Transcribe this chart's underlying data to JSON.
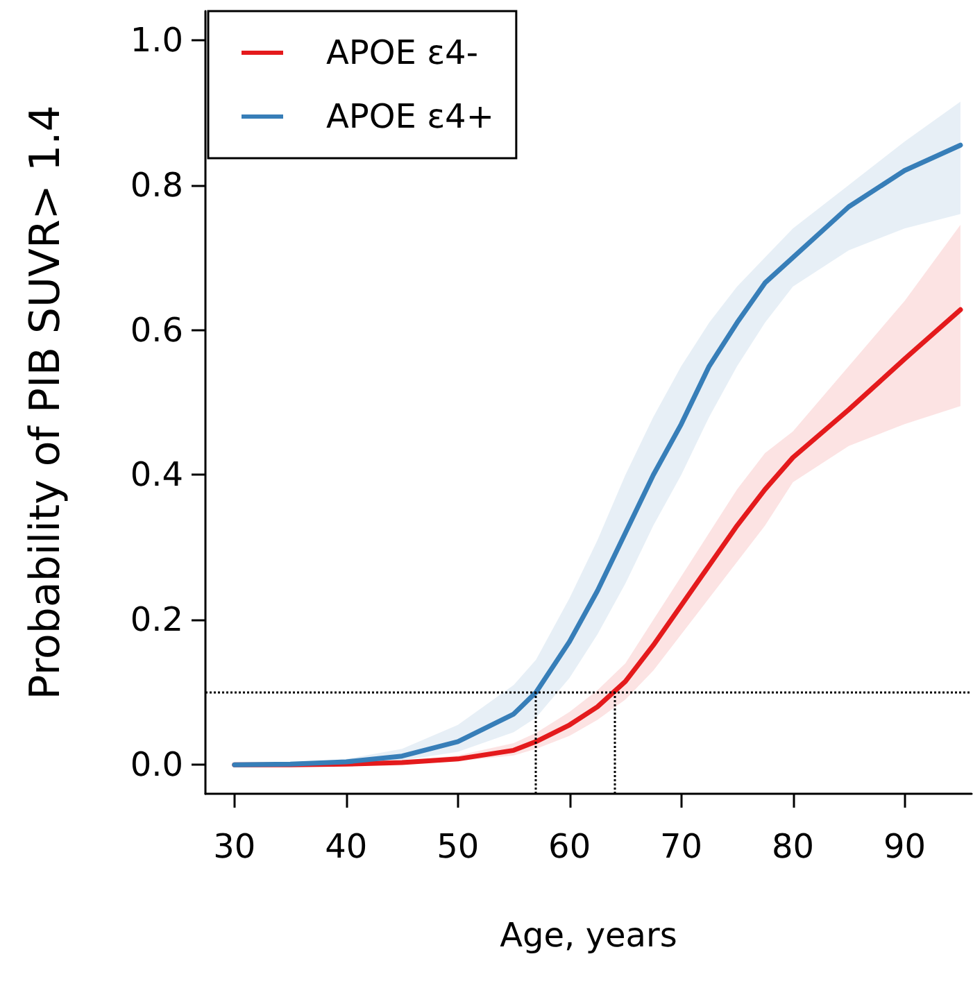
{
  "chart_data": {
    "type": "line",
    "xlabel": "Age, years",
    "ylabel": "Probability of PIB SUVR> 1.4",
    "x": [
      30,
      35,
      40,
      45,
      50,
      55,
      57,
      60,
      62.5,
      65,
      67.5,
      70,
      72.5,
      75,
      77.5,
      80,
      85,
      90,
      95
    ],
    "series": [
      {
        "name": "APOE ε4-",
        "color": "#e41a1c",
        "values": [
          0,
          0,
          0.001,
          0.003,
          0.008,
          0.02,
          0.032,
          0.055,
          0.08,
          0.115,
          0.165,
          0.22,
          0.275,
          0.33,
          0.38,
          0.424,
          0.49,
          0.56,
          0.628
        ],
        "lower": [
          0,
          0,
          0,
          0.001,
          0.005,
          0.013,
          0.022,
          0.04,
          0.062,
          0.09,
          0.13,
          0.18,
          0.23,
          0.28,
          0.33,
          0.39,
          0.44,
          0.47,
          0.495
        ],
        "upper": [
          0,
          0.001,
          0.002,
          0.005,
          0.013,
          0.03,
          0.044,
          0.073,
          0.103,
          0.14,
          0.2,
          0.26,
          0.32,
          0.38,
          0.43,
          0.46,
          0.55,
          0.64,
          0.745
        ]
      },
      {
        "name": "APOE ε4+",
        "color": "#377eb8",
        "values": [
          0,
          0.001,
          0.004,
          0.012,
          0.032,
          0.07,
          0.1,
          0.17,
          0.24,
          0.32,
          0.4,
          0.47,
          0.55,
          0.61,
          0.665,
          0.7,
          0.77,
          0.82,
          0.855
        ],
        "lower": [
          0,
          0,
          0.002,
          0.006,
          0.018,
          0.045,
          0.065,
          0.12,
          0.18,
          0.25,
          0.33,
          0.4,
          0.48,
          0.55,
          0.61,
          0.66,
          0.71,
          0.74,
          0.76
        ],
        "upper": [
          0,
          0.002,
          0.008,
          0.022,
          0.055,
          0.11,
          0.145,
          0.23,
          0.31,
          0.4,
          0.48,
          0.55,
          0.61,
          0.66,
          0.7,
          0.74,
          0.8,
          0.86,
          0.915
        ]
      }
    ],
    "xlim": [
      27.4,
      96
    ],
    "xticks": [
      30,
      40,
      50,
      60,
      70,
      80,
      90
    ],
    "ylim": [
      -0.04,
      1.04
    ],
    "yticks": [
      {
        "value": 0,
        "label": "0.0"
      },
      {
        "value": 0.2,
        "label": "0.2"
      },
      {
        "value": 0.4,
        "label": "0.4"
      },
      {
        "value": 0.6,
        "label": "0.6"
      },
      {
        "value": 0.8,
        "label": "0.8"
      },
      {
        "value": 1,
        "label": "1.0"
      }
    ],
    "ref_lines": [
      {
        "axis": "y",
        "value": 0.1,
        "line_style": "dotted",
        "color": "#000000"
      },
      {
        "axis": "x",
        "value": 57,
        "line_style": "dotted",
        "color": "#000000"
      },
      {
        "axis": "x",
        "value": 64,
        "line_style": "dotted",
        "color": "#000000"
      }
    ],
    "legend": "top left",
    "grid": false,
    "marker": "none",
    "line_style": "solid"
  }
}
